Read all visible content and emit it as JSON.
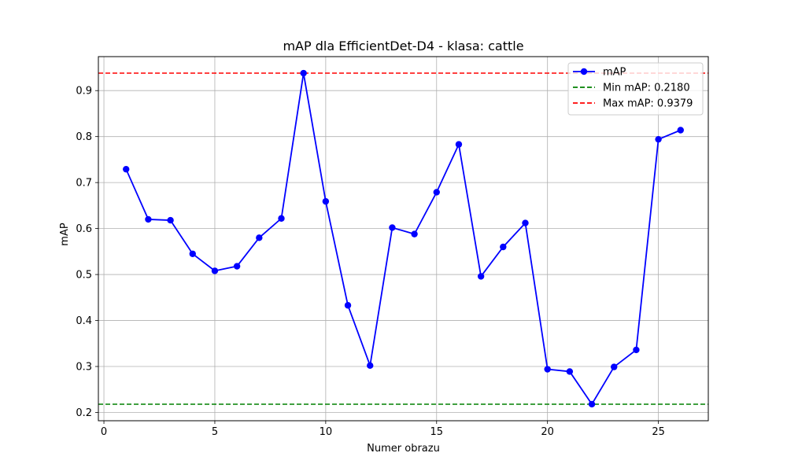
{
  "chart_data": {
    "type": "line",
    "title": "mAP dla EfficientDet-D4 - klasa: cattle",
    "xlabel": "Numer obrazu",
    "ylabel": "mAP",
    "xlim": [
      -0.25,
      27.25
    ],
    "ylim": [
      0.182,
      0.9739
    ],
    "grid": true,
    "legend_position": "top-right",
    "x_ticks": [
      0,
      5,
      10,
      15,
      20,
      25
    ],
    "x_tick_labels": [
      "0",
      "5",
      "10",
      "15",
      "20",
      "25"
    ],
    "y_ticks": [
      0.2,
      0.3,
      0.4,
      0.5,
      0.6,
      0.7,
      0.8,
      0.9
    ],
    "y_tick_labels": [
      "0.2",
      "0.3",
      "0.4",
      "0.5",
      "0.6",
      "0.7",
      "0.8",
      "0.9"
    ],
    "series": [
      {
        "name": "mAP",
        "color": "#0000ff",
        "marker": "circle",
        "x": [
          1,
          2,
          3,
          4,
          5,
          6,
          7,
          8,
          9,
          10,
          11,
          12,
          13,
          14,
          15,
          16,
          17,
          18,
          19,
          20,
          21,
          22,
          23,
          24,
          25,
          26
        ],
        "values": [
          0.729,
          0.62,
          0.618,
          0.545,
          0.508,
          0.518,
          0.58,
          0.622,
          0.9379,
          0.659,
          0.433,
          0.302,
          0.602,
          0.588,
          0.679,
          0.783,
          0.496,
          0.56,
          0.612,
          0.294,
          0.289,
          0.218,
          0.299,
          0.336,
          0.794,
          0.814
        ]
      }
    ],
    "reference_lines": [
      {
        "name": "Min mAP: 0.2180",
        "value": 0.218,
        "color": "#008000",
        "style": "dashed"
      },
      {
        "name": "Max mAP: 0.9379",
        "value": 0.9379,
        "color": "#ff0000",
        "style": "dashed"
      }
    ]
  }
}
